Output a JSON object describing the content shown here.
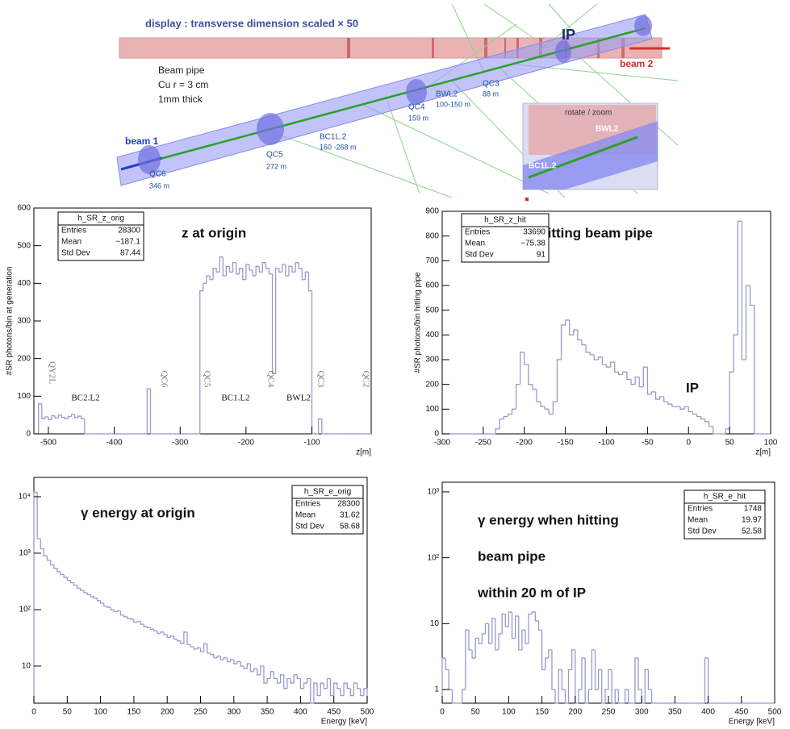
{
  "diagram": {
    "labels": [
      "display : transverse dimension scaled × 50",
      "IP",
      "beam 2",
      "Beam pipe",
      "Cu r = 3 cm",
      "1mm thick",
      "beam 1",
      "QC6",
      "346 m",
      "QC5",
      "272 m",
      "BC1L.2",
      "160 -268 m",
      "QC4",
      "159 m",
      "BWL2",
      "100-150 m",
      "QC3",
      "88 m",
      "rotate / zoom",
      "BWL2",
      "BC1L.2"
    ]
  },
  "chart_data": [
    {
      "type": "histogram",
      "title": "z at origin",
      "x_label": "z[m]",
      "y_label": "#SR photons/bin at generation",
      "color": "#9a9acc",
      "log_y": false,
      "xlim": [
        -522,
        -10
      ],
      "xticks": [
        -500,
        -400,
        -300,
        -200,
        -100
      ],
      "ylim": [
        0,
        600
      ],
      "yticks": [
        0,
        100,
        200,
        300,
        400,
        500,
        600
      ],
      "bins": [
        -520,
        -515,
        -510,
        -505,
        -500,
        -495,
        -490,
        -485,
        -480,
        -475,
        -470,
        -465,
        -460,
        -455,
        -450,
        -445,
        -440,
        -435,
        -430,
        -425,
        -420,
        -415,
        -410,
        -405,
        -400,
        -395,
        -390,
        -385,
        -380,
        -375,
        -370,
        -365,
        -360,
        -355,
        -350,
        -345,
        -340,
        -335,
        -330,
        -325,
        -320,
        -315,
        -310,
        -305,
        -300,
        -295,
        -290,
        -285,
        -280,
        -275,
        -270,
        -265,
        -260,
        -255,
        -250,
        -245,
        -240,
        -235,
        -230,
        -225,
        -220,
        -215,
        -210,
        -205,
        -200,
        -195,
        -190,
        -185,
        -180,
        -175,
        -170,
        -165,
        -160,
        -155,
        -150,
        -145,
        -140,
        -135,
        -130,
        -125,
        -120,
        -115,
        -110,
        -105,
        -100,
        -95,
        -90,
        -85,
        -80,
        -75,
        -70,
        -65,
        -60,
        -55,
        -50,
        -45,
        -40,
        -35,
        -30,
        -25,
        -20,
        -15,
        -10
      ],
      "values": [
        0,
        80,
        40,
        45,
        38,
        48,
        42,
        50,
        44,
        40,
        46,
        52,
        43,
        47,
        40,
        0,
        0,
        0,
        0,
        0,
        0,
        0,
        0,
        0,
        0,
        0,
        0,
        0,
        0,
        0,
        0,
        0,
        0,
        0,
        120,
        0,
        0,
        0,
        0,
        0,
        0,
        0,
        0,
        0,
        0,
        0,
        0,
        0,
        0,
        0,
        380,
        400,
        420,
        410,
        440,
        430,
        470,
        420,
        445,
        430,
        455,
        425,
        440,
        410,
        450,
        435,
        420,
        445,
        430,
        455,
        440,
        425,
        160,
        440,
        430,
        450,
        420,
        445,
        430,
        455,
        440,
        410,
        430,
        380,
        0,
        0,
        40,
        0,
        0,
        0,
        0,
        0,
        0,
        0,
        0,
        0,
        0,
        0,
        0,
        0,
        0,
        0
      ],
      "stats": {
        "name": "h_SR_z_orig",
        "rows": [
          [
            "Entries",
            "28300"
          ],
          [
            "Mean",
            "−187.1"
          ],
          [
            "Std Dev",
            "87.44"
          ]
        ]
      },
      "annotations": [
        "QY2L",
        "QC6",
        "QC5",
        "QC4",
        "QC3",
        "QC2",
        "BC2.L2",
        "BC1.L2",
        "BWL2"
      ]
    },
    {
      "type": "histogram",
      "title": "z hitting beam pipe",
      "x_label": "z[m]",
      "y_label": "#SR photons/bin hitting pipe",
      "color": "#9a9acc",
      "log_y": false,
      "xlim": [
        -300,
        100
      ],
      "xticks": [
        -300,
        -250,
        -200,
        -150,
        -100,
        -50,
        0,
        50,
        100
      ],
      "ylim": [
        0,
        900
      ],
      "yticks": [
        0,
        100,
        200,
        300,
        400,
        500,
        600,
        700,
        800,
        900
      ],
      "bins": [
        -300,
        -295,
        -290,
        -285,
        -280,
        -275,
        -270,
        -265,
        -260,
        -255,
        -250,
        -245,
        -240,
        -235,
        -230,
        -225,
        -220,
        -215,
        -210,
        -205,
        -200,
        -195,
        -190,
        -185,
        -180,
        -175,
        -170,
        -165,
        -160,
        -155,
        -150,
        -145,
        -140,
        -135,
        -130,
        -125,
        -120,
        -115,
        -110,
        -105,
        -100,
        -95,
        -90,
        -85,
        -80,
        -75,
        -70,
        -65,
        -60,
        -55,
        -50,
        -45,
        -40,
        -35,
        -30,
        -25,
        -20,
        -15,
        -10,
        -5,
        0,
        5,
        10,
        15,
        20,
        25,
        30,
        35,
        40,
        45,
        50,
        55,
        60,
        65,
        70,
        75,
        80,
        85,
        90,
        95,
        100
      ],
      "values": [
        0,
        0,
        0,
        0,
        0,
        0,
        0,
        0,
        0,
        0,
        0,
        0,
        0,
        20,
        60,
        70,
        80,
        100,
        200,
        330,
        280,
        200,
        180,
        130,
        110,
        100,
        80,
        130,
        300,
        440,
        460,
        400,
        420,
        380,
        360,
        330,
        320,
        300,
        310,
        280,
        270,
        290,
        250,
        240,
        250,
        220,
        200,
        230,
        190,
        270,
        160,
        170,
        140,
        150,
        130,
        120,
        110,
        110,
        100,
        110,
        90,
        80,
        70,
        60,
        50,
        30,
        0,
        0,
        0,
        20,
        250,
        400,
        860,
        300,
        600,
        520,
        0,
        0,
        0,
        0
      ],
      "stats": {
        "name": "h_SR_z_hit",
        "rows": [
          [
            "Entries",
            "33690"
          ],
          [
            "Mean",
            "−75.38"
          ],
          [
            "Std Dev",
            "91"
          ]
        ]
      },
      "annotations": [
        "IP"
      ]
    },
    {
      "type": "histogram",
      "title": "γ energy at origin",
      "x_label": "Energy [keV]",
      "color": "#9a9acc",
      "log_y": true,
      "xlim": [
        0,
        500
      ],
      "xticks": [
        0,
        50,
        100,
        150,
        200,
        250,
        300,
        350,
        400,
        450,
        500
      ],
      "ylim": [
        2.2,
        22000
      ],
      "yticks": [
        10,
        {
          "value": 100,
          "label": "10²"
        },
        {
          "value": 1000,
          "label": "10³"
        },
        {
          "value": 10000,
          "label": "10⁴"
        }
      ],
      "bins": [
        0,
        5,
        10,
        15,
        20,
        25,
        30,
        35,
        40,
        45,
        50,
        55,
        60,
        65,
        70,
        75,
        80,
        85,
        90,
        95,
        100,
        105,
        110,
        115,
        120,
        125,
        130,
        135,
        140,
        145,
        150,
        155,
        160,
        165,
        170,
        175,
        180,
        185,
        190,
        195,
        200,
        205,
        210,
        215,
        220,
        225,
        230,
        235,
        240,
        245,
        250,
        255,
        260,
        265,
        270,
        275,
        280,
        285,
        290,
        295,
        300,
        305,
        310,
        315,
        320,
        325,
        330,
        335,
        340,
        345,
        350,
        355,
        360,
        365,
        370,
        375,
        380,
        385,
        390,
        395,
        400,
        405,
        410,
        415,
        420,
        425,
        430,
        435,
        440,
        445,
        450,
        455,
        460,
        465,
        470,
        475,
        480,
        485,
        490,
        495,
        500
      ],
      "values": [
        12000,
        1800,
        1200,
        900,
        750,
        620,
        540,
        470,
        420,
        370,
        330,
        300,
        270,
        240,
        220,
        200,
        185,
        170,
        160,
        145,
        130,
        115,
        110,
        100,
        92,
        95,
        80,
        75,
        70,
        68,
        60,
        62,
        55,
        50,
        48,
        45,
        42,
        38,
        40,
        36,
        32,
        34,
        30,
        28,
        25,
        40,
        24,
        22,
        20,
        21,
        18,
        25,
        17,
        16,
        14,
        15,
        13,
        14,
        12,
        13,
        11,
        12,
        10,
        9,
        11,
        8,
        9,
        7,
        10,
        5,
        6,
        8,
        6,
        5,
        7,
        4,
        6,
        5,
        7,
        6,
        4,
        5,
        6,
        2,
        5,
        3,
        5,
        4,
        6,
        3,
        5,
        4,
        3,
        5,
        4,
        3,
        5,
        4,
        3,
        4
      ],
      "stats": {
        "name": "h_SR_e_orig",
        "rows": [
          [
            "Entries",
            "28300"
          ],
          [
            "Mean",
            "31.62"
          ],
          [
            "Std Dev",
            "58.68"
          ]
        ]
      },
      "annotations": []
    },
    {
      "type": "histogram",
      "title": [
        "γ  energy when hitting",
        "beam pipe",
        "within 20 m of IP"
      ],
      "x_label": "Energy [keV]",
      "color": "#9a9acc",
      "log_y": true,
      "xlim": [
        0,
        500
      ],
      "xticks": [
        0,
        50,
        100,
        150,
        200,
        250,
        300,
        350,
        400,
        450,
        500
      ],
      "ylim": [
        0.62,
        1400
      ],
      "yticks": [
        1,
        10,
        {
          "value": 100,
          "label": "10²"
        },
        {
          "value": 1000,
          "label": "10³"
        }
      ],
      "bins": [
        0,
        5,
        10,
        15,
        20,
        25,
        30,
        35,
        40,
        45,
        50,
        55,
        60,
        65,
        70,
        75,
        80,
        85,
        90,
        95,
        100,
        105,
        110,
        115,
        120,
        125,
        130,
        135,
        140,
        145,
        150,
        155,
        160,
        165,
        170,
        175,
        180,
        185,
        190,
        195,
        200,
        205,
        210,
        215,
        220,
        225,
        230,
        235,
        240,
        245,
        250,
        255,
        260,
        265,
        270,
        275,
        280,
        285,
        290,
        295,
        300,
        305,
        310,
        315,
        320,
        325,
        330,
        335,
        340,
        345,
        350,
        355,
        360,
        365,
        370,
        375,
        380,
        385,
        390,
        395,
        400,
        405,
        410,
        415,
        420,
        425,
        430,
        435,
        440,
        445,
        450,
        455,
        460,
        465,
        470,
        475,
        480,
        485,
        490,
        495,
        500
      ],
      "values": [
        3,
        2,
        1,
        0,
        0,
        0,
        1,
        8,
        4,
        3,
        6,
        5,
        7,
        10,
        5,
        12,
        4,
        7,
        14,
        9,
        15,
        6,
        13,
        4,
        8,
        5,
        14,
        15,
        11,
        8,
        2,
        3,
        4,
        1,
        0,
        2,
        1,
        0,
        2,
        4,
        0,
        1,
        3,
        0,
        1,
        4,
        1,
        2,
        0,
        1,
        2,
        0,
        1,
        0,
        0,
        1,
        0,
        0,
        3,
        1,
        0,
        2,
        1,
        0,
        0,
        0,
        0,
        0,
        0,
        0,
        0,
        0,
        0,
        0,
        0,
        0,
        0,
        0,
        0,
        3,
        0,
        0,
        0,
        0,
        0,
        0,
        0,
        0,
        0,
        0,
        0,
        0,
        0,
        0,
        0,
        0,
        0,
        0,
        0,
        0
      ],
      "stats": {
        "name": "h_SR_e_hit",
        "rows": [
          [
            "Entries",
            "1748"
          ],
          [
            "Mean",
            "19.97"
          ],
          [
            "Std Dev",
            "52.58"
          ]
        ]
      },
      "annotations": []
    }
  ]
}
